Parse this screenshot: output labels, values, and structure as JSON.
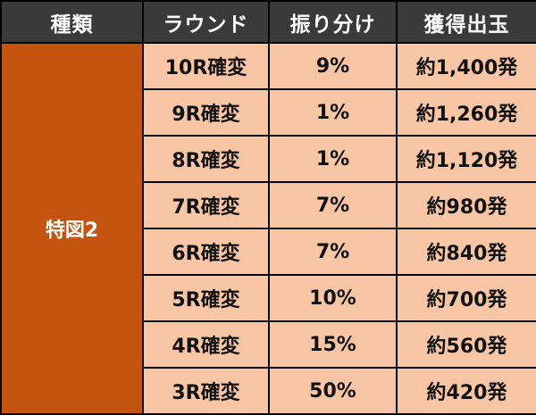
{
  "headers": {
    "kind": "種類",
    "round": "ラウンド",
    "split": "振り分け",
    "payout": "獲得出玉"
  },
  "kind_label": "特図2",
  "rows": [
    {
      "round": "10R確変",
      "split": "9%",
      "payout": "約1,400発"
    },
    {
      "round": "9R確変",
      "split": "1%",
      "payout": "約1,260発"
    },
    {
      "round": "8R確変",
      "split": "1%",
      "payout": "約1,120発"
    },
    {
      "round": "7R確変",
      "split": "7%",
      "payout": "約980発"
    },
    {
      "round": "6R確変",
      "split": "7%",
      "payout": "約840発"
    },
    {
      "round": "5R確変",
      "split": "10%",
      "payout": "約700発"
    },
    {
      "round": "4R確変",
      "split": "15%",
      "payout": "約560発"
    },
    {
      "round": "3R確変",
      "split": "50%",
      "payout": "約420発"
    }
  ],
  "colors": {
    "header_bg": "#3a3a3a",
    "kind_bg": "#c4540f",
    "cell_bg": "#f8c6a5",
    "border": "#000000"
  }
}
